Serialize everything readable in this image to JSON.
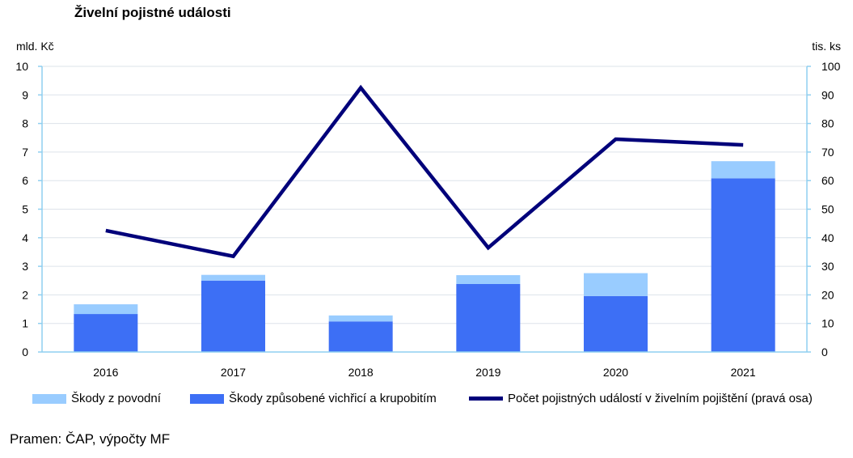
{
  "chart_data": {
    "type": "bar",
    "title": "Živelní pojistné události",
    "left_axis_unit": "mld. Kč",
    "right_axis_unit": "tis. ks",
    "categories": [
      "2016",
      "2017",
      "2018",
      "2019",
      "2020",
      "2021"
    ],
    "series": [
      {
        "name": "Škody způsobené vichřicí a krupobitím",
        "type": "bar",
        "stack": "damage",
        "axis": "left",
        "color": "#3d6ff5",
        "values": [
          1.33,
          2.5,
          1.07,
          2.38,
          1.96,
          6.08
        ]
      },
      {
        "name": "Škody z povodní",
        "type": "bar",
        "stack": "damage",
        "axis": "left",
        "color": "#99ccff",
        "values": [
          0.34,
          0.2,
          0.21,
          0.31,
          0.8,
          0.6
        ]
      },
      {
        "name": "Počet pojistných událostí v živelním pojištění (pravá osa)",
        "type": "line",
        "axis": "right",
        "color": "#00007a",
        "values": [
          42.5,
          33.5,
          92.5,
          36.5,
          74.5,
          72.5
        ]
      }
    ],
    "left_axis": {
      "min": 0,
      "max": 10,
      "ticks": [
        "0",
        "1",
        "2",
        "3",
        "4",
        "5",
        "6",
        "7",
        "8",
        "9",
        "10"
      ]
    },
    "right_axis": {
      "min": 0,
      "max": 100,
      "ticks": [
        "0",
        "10",
        "20",
        "30",
        "40",
        "50",
        "60",
        "70",
        "80",
        "90",
        "100"
      ]
    },
    "grid": true,
    "legend": {
      "position": "bottom",
      "items": [
        {
          "label": "Škody z povodní",
          "color": "#99ccff",
          "kind": "box"
        },
        {
          "label": "Škody způsobené vichřicí a krupobitím",
          "color": "#3d6ff5",
          "kind": "box"
        },
        {
          "label": "Počet pojistných událostí v živelním pojištění (pravá osa)",
          "color": "#00007a",
          "kind": "line"
        }
      ]
    },
    "source": "Pramen: ČAP, výpočty MF"
  }
}
